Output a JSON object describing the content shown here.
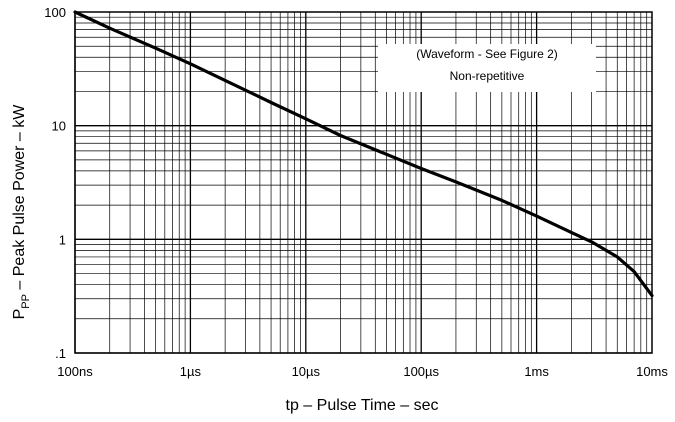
{
  "chart_data": {
    "type": "line",
    "xlabel": "tp – Pulse Time – sec",
    "ylabel_main": "P",
    "ylabel_sub": "PP",
    "ylabel_rest": " – Peak Pulse Power – kW",
    "x_scale": "log",
    "y_scale": "log",
    "xlim": [
      1e-07,
      0.01
    ],
    "ylim": [
      0.1,
      100
    ],
    "grid": true,
    "x_ticks": [
      {
        "value": 1e-07,
        "label": "100ns"
      },
      {
        "value": 1e-06,
        "label": "1µs"
      },
      {
        "value": 1e-05,
        "label": "10µs"
      },
      {
        "value": 0.0001,
        "label": "100µs"
      },
      {
        "value": 0.001,
        "label": "1ms"
      },
      {
        "value": 0.01,
        "label": "10ms"
      }
    ],
    "y_ticks": [
      {
        "value": 100,
        "label": "100"
      },
      {
        "value": 10,
        "label": "10"
      },
      {
        "value": 1,
        "label": "1"
      },
      {
        "value": 0.1,
        "label": ".1"
      }
    ],
    "annotations": [
      "(Waveform - See Figure 2)",
      "Non-repetitive"
    ],
    "series": [
      {
        "x": [
          1e-07,
          2e-07,
          5e-07,
          1e-06,
          2e-06,
          5e-06,
          1e-05,
          2e-05,
          5e-05,
          0.0001,
          0.0002,
          0.0005,
          0.001,
          0.002,
          0.003,
          0.005,
          0.007,
          0.01
        ],
        "y": [
          100,
          72,
          48,
          35,
          25,
          16,
          11.5,
          8.2,
          5.6,
          4.2,
          3.2,
          2.2,
          1.6,
          1.15,
          0.95,
          0.7,
          0.52,
          0.32
        ]
      }
    ]
  }
}
